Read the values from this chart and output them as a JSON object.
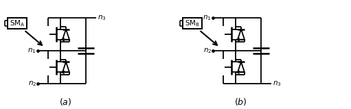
{
  "fig_width": 5.11,
  "fig_height": 1.59,
  "dpi": 100,
  "background": "#ffffff",
  "line_color": "#000000",
  "line_width": 1.3
}
